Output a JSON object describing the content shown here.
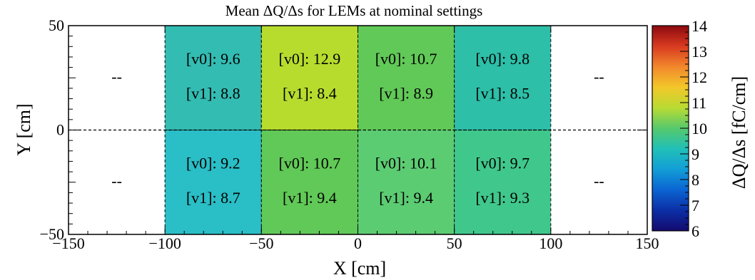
{
  "chart_data": {
    "type": "heatmap",
    "title": "Mean ΔQ/Δs for LEMs at nominal settings",
    "xlabel": "X [cm]",
    "ylabel": "Y [cm]",
    "xlim": [
      -150,
      150
    ],
    "ylim": [
      -50,
      50
    ],
    "x_ticks": [
      -150,
      -100,
      -50,
      0,
      50,
      100,
      150
    ],
    "y_ticks": [
      -50,
      0,
      50
    ],
    "x_tick_labels": [
      "−150",
      "−100",
      "−50",
      "0",
      "50",
      "100",
      "150"
    ],
    "y_tick_labels": [
      "−50",
      "0",
      "50"
    ],
    "colorbar": {
      "label": "ΔQ/Δs [fC/cm]",
      "range": [
        6,
        14
      ],
      "ticks": [
        6,
        7,
        8,
        9,
        10,
        11,
        12,
        13,
        14
      ],
      "tick_labels": [
        "6",
        "7",
        "8",
        "9",
        "10",
        "11",
        "12",
        "13",
        "14"
      ]
    },
    "cells": [
      {
        "x": [
          -150,
          -100
        ],
        "y": [
          0,
          50
        ],
        "value": null,
        "v0_text": "--",
        "v1_text": ""
      },
      {
        "x": [
          -100,
          -50
        ],
        "y": [
          0,
          50
        ],
        "value": 9.6,
        "v0_text": "[v0]: 9.6",
        "v1_text": "[v1]: 8.8"
      },
      {
        "x": [
          -50,
          0
        ],
        "y": [
          0,
          50
        ],
        "value": 12.9,
        "v0_text": "[v0]: 12.9",
        "v1_text": "[v1]: 8.4"
      },
      {
        "x": [
          0,
          50
        ],
        "y": [
          0,
          50
        ],
        "value": 10.7,
        "v0_text": "[v0]: 10.7",
        "v1_text": "[v1]: 8.9"
      },
      {
        "x": [
          50,
          100
        ],
        "y": [
          0,
          50
        ],
        "value": 9.8,
        "v0_text": "[v0]: 9.8",
        "v1_text": "[v1]: 8.5"
      },
      {
        "x": [
          100,
          150
        ],
        "y": [
          0,
          50
        ],
        "value": null,
        "v0_text": "--",
        "v1_text": ""
      },
      {
        "x": [
          -150,
          -100
        ],
        "y": [
          -50,
          0
        ],
        "value": null,
        "v0_text": "--",
        "v1_text": ""
      },
      {
        "x": [
          -100,
          -50
        ],
        "y": [
          -50,
          0
        ],
        "value": 9.2,
        "v0_text": "[v0]: 9.2",
        "v1_text": "[v1]: 8.7"
      },
      {
        "x": [
          -50,
          0
        ],
        "y": [
          -50,
          0
        ],
        "value": 10.7,
        "v0_text": "[v0]: 10.7",
        "v1_text": "[v1]: 9.4"
      },
      {
        "x": [
          0,
          50
        ],
        "y": [
          -50,
          0
        ],
        "value": 10.1,
        "v0_text": "[v0]: 10.1",
        "v1_text": "[v1]: 9.4"
      },
      {
        "x": [
          50,
          100
        ],
        "y": [
          -50,
          0
        ],
        "value": 9.7,
        "v0_text": "[v0]: 9.7",
        "v1_text": "[v1]: 9.3"
      },
      {
        "x": [
          100,
          150
        ],
        "y": [
          -50,
          0
        ],
        "value": null,
        "v0_text": "--",
        "v1_text": ""
      }
    ],
    "colors": {
      "cells": {
        "9.6": "#33bcb2",
        "12.9": "#b7dc2e",
        "10.7": "#61c957",
        "9.8": "#2dbfa8",
        "9.2": "#2abec6",
        "10.1": "#5ccc73",
        "9.7": "#40c88c"
      },
      "colorbar_stops": [
        "#140a6e",
        "#0c2fa6",
        "#0b64d2",
        "#139ed6",
        "#21c0b8",
        "#56c96c",
        "#b9db33",
        "#f3c72a",
        "#f2872c",
        "#d83a20",
        "#8c0a10"
      ]
    },
    "grid": "dashed cell boundaries"
  }
}
